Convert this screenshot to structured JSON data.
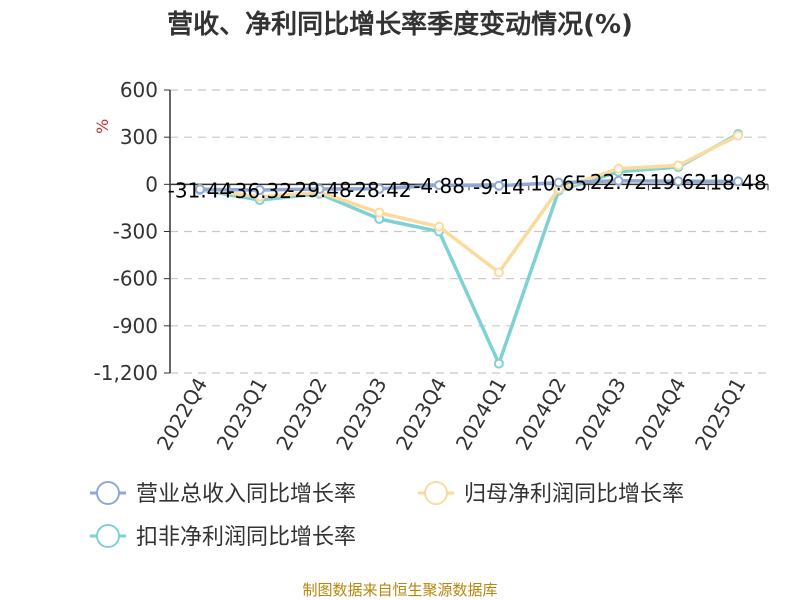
{
  "chart_data": {
    "type": "line",
    "title": "营收、净利同比增长率季度变动情况(%)",
    "ylabel": "%",
    "categories": [
      "2022Q4",
      "2023Q1",
      "2023Q2",
      "2023Q3",
      "2023Q4",
      "2024Q1",
      "2024Q2",
      "2024Q3",
      "2024Q4",
      "2025Q1"
    ],
    "ylim": [
      -1200,
      600
    ],
    "yticks": [
      600,
      300,
      0,
      -300,
      -600,
      -900,
      -1200
    ],
    "ytick_labels": [
      "600",
      "300",
      "0",
      "-300",
      "-600",
      "-900",
      "-1,200"
    ],
    "grid": true,
    "legend_position": "bottom",
    "series": [
      {
        "name": "营业总收入同比增长率",
        "color": "#8fa8d8",
        "values": [
          -31.44,
          -36.32,
          -29.48,
          -28.42,
          -4.88,
          -9.14,
          10.65,
          22.72,
          19.62,
          18.48
        ],
        "labels": [
          "-31.44",
          "-36.32",
          "-29.48",
          "-28.42",
          "-4.88",
          "-9.14",
          "10.65",
          "22.72",
          "19.62",
          "18.48"
        ]
      },
      {
        "name": "归母净利润同比增长率",
        "color": "#fbdb9d",
        "values": [
          -30,
          -80,
          -50,
          -180,
          -270,
          -560,
          -30,
          100,
          120,
          310
        ]
      },
      {
        "name": "扣非净利润同比增长率",
        "color": "#7fd1d4",
        "values": [
          -35,
          -100,
          -60,
          -220,
          -300,
          -1140,
          -40,
          80,
          110,
          320
        ]
      }
    ]
  },
  "source": "制图数据来自恒生聚源数据库"
}
